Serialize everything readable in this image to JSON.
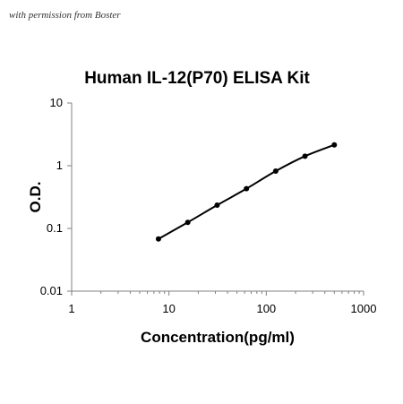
{
  "watermark": "with permission from Boster",
  "chart_data": {
    "type": "line",
    "title": "Human IL-12(P70)  ELISA Kit",
    "xlabel": "Concentration(pg/ml)",
    "ylabel": "O.D.",
    "xscale": "log",
    "yscale": "log",
    "xlim": [
      1,
      1000
    ],
    "ylim": [
      0.01,
      10
    ],
    "xticks": [
      "1",
      "10",
      "100",
      "1000"
    ],
    "yticks": [
      "0.01",
      "0.1",
      "1",
      "10"
    ],
    "grid": false,
    "series": [
      {
        "x": [
          7.8,
          15.6,
          31.25,
          62.5,
          125,
          250,
          500
        ],
        "y": [
          0.068,
          0.125,
          0.235,
          0.43,
          0.82,
          1.42,
          2.15
        ]
      }
    ]
  }
}
